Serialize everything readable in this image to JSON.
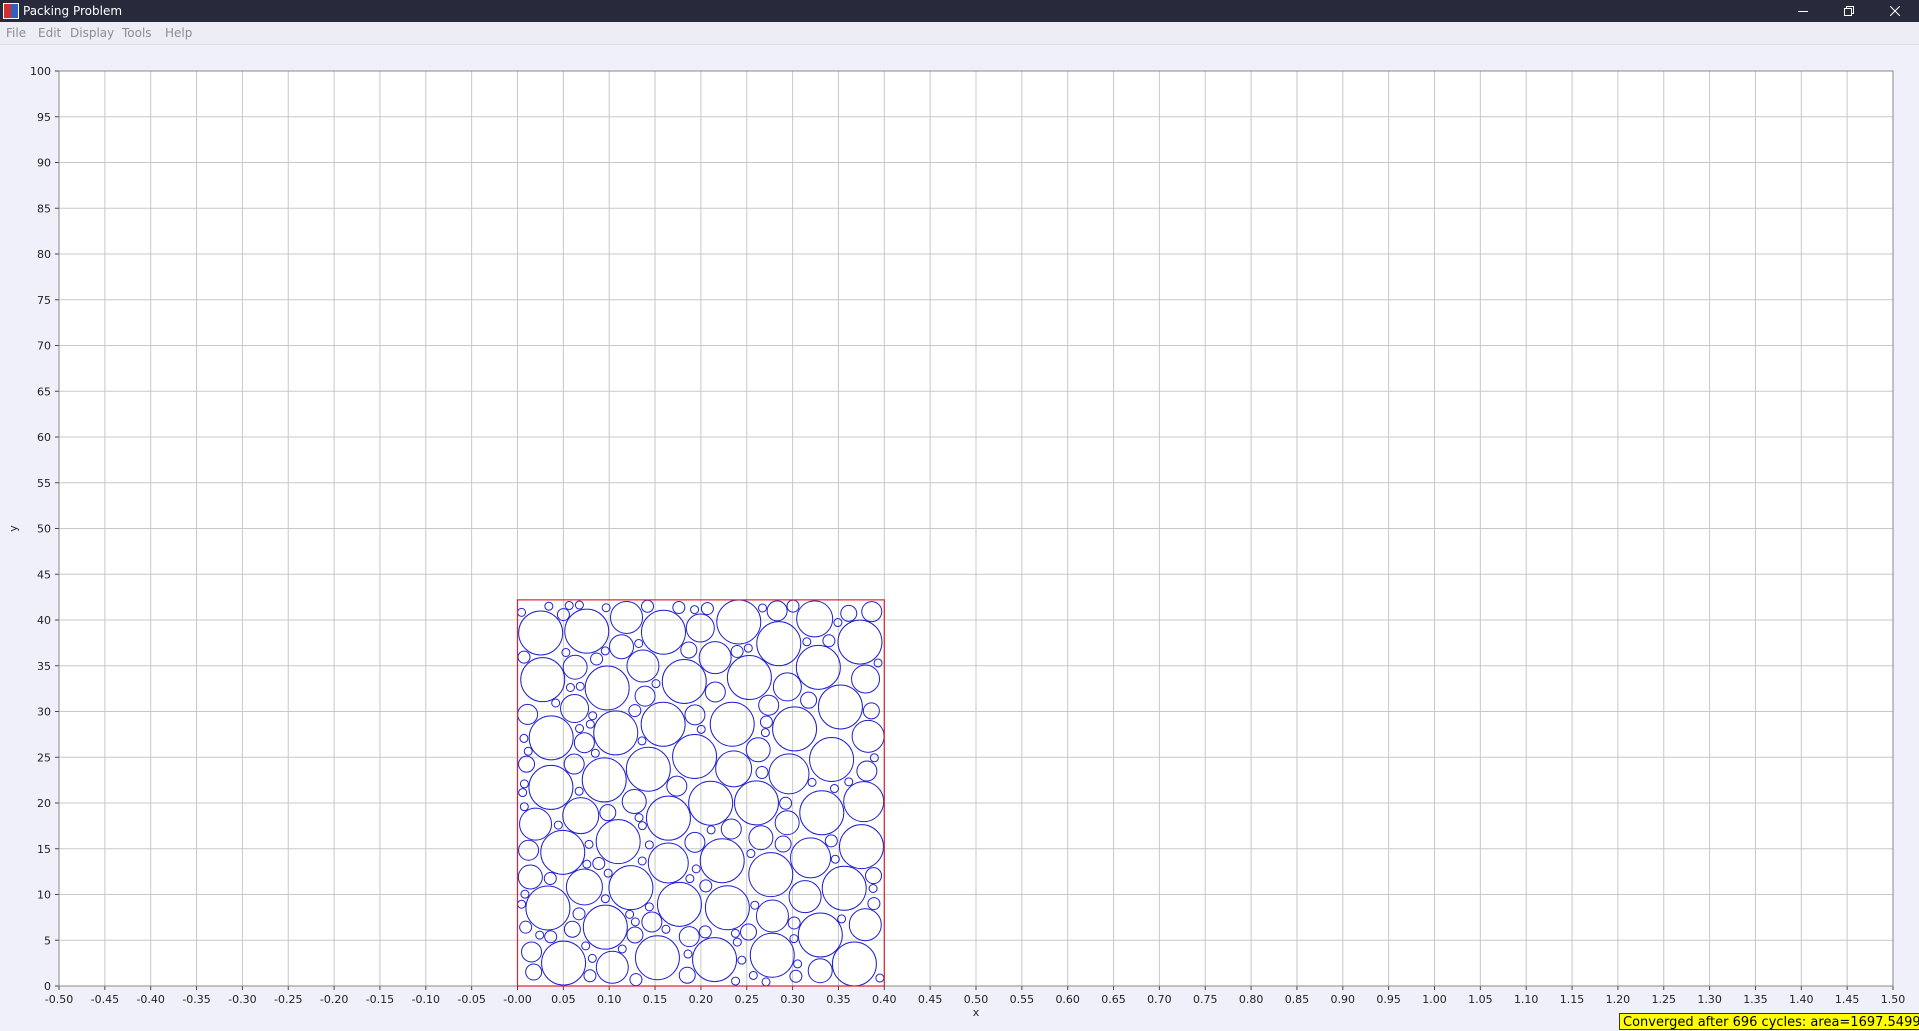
{
  "window": {
    "title": "Packing Problem",
    "icons": {
      "app": "app-icon",
      "minimize": "minimize-icon",
      "restore": "restore-icon",
      "close": "close-icon"
    }
  },
  "menu": {
    "items": [
      "File",
      "Edit",
      "Display",
      "Tools",
      "Help"
    ]
  },
  "status": {
    "message": "Converged after 696 cycles: area=1697.54991"
  },
  "colors": {
    "circle": "#2020d0",
    "container": "#e02030",
    "grid": "#c8c8c8",
    "status_background": "#ffff00",
    "titlebar": "#262a3b"
  },
  "chart_data": {
    "type": "scatter",
    "xlabel": "x",
    "ylabel": "y",
    "xlim": [
      -0.5,
      1.5
    ],
    "ylim": [
      0,
      100
    ],
    "x_ticks": [
      "-0.50",
      "-0.45",
      "-0.40",
      "-0.35",
      "-0.30",
      "-0.25",
      "-0.20",
      "-0.15",
      "-0.10",
      "-0.05",
      "-0.00",
      "0.05",
      "0.10",
      "0.15",
      "0.20",
      "0.25",
      "0.30",
      "0.35",
      "0.40",
      "0.45",
      "0.50",
      "0.55",
      "0.60",
      "0.65",
      "0.70",
      "0.75",
      "0.80",
      "0.85",
      "0.90",
      "0.95",
      "1.00",
      "1.05",
      "1.10",
      "1.15",
      "1.20",
      "1.25",
      "1.30",
      "1.35",
      "1.40",
      "1.45",
      "1.50"
    ],
    "y_ticks": [
      "0",
      "5",
      "10",
      "15",
      "20",
      "25",
      "30",
      "35",
      "40",
      "45",
      "50",
      "55",
      "60",
      "65",
      "70",
      "75",
      "80",
      "85",
      "90",
      "95",
      "100"
    ],
    "grid": true,
    "container": {
      "x0": 0.0,
      "x1": 0.4,
      "y0": 0,
      "y1": 42.2
    }
  }
}
